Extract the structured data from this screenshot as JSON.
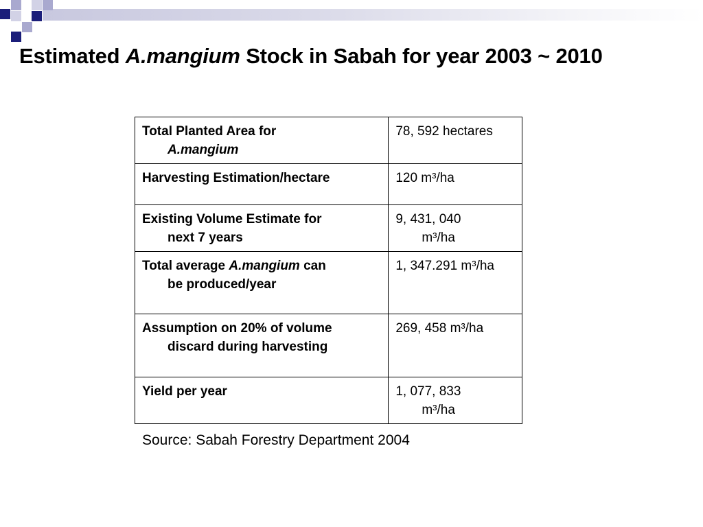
{
  "slide": {
    "title_before": "Estimated ",
    "title_italic": "A.mangium",
    "title_after": " Stock in Sabah for year 2003 ~ 2010"
  },
  "table": {
    "rows": [
      {
        "label_line1": "Total Planted Area for",
        "label_line2_italic": "A.mangium",
        "value_line1": "78, 592 hectares",
        "value_line2": ""
      },
      {
        "label_line1": "Harvesting Estimation/hectare",
        "value_line1": "120 m³/ha",
        "value_line2": ""
      },
      {
        "label_line1": "Existing Volume Estimate for",
        "label_line2": "next 7 years",
        "value_line1": "9, 431, 040",
        "value_line2": "m³/ha"
      },
      {
        "label_line1_pre": "Total average ",
        "label_line1_italic": "A.mangium",
        "label_line1_post": " can",
        "label_line2": "be produced/year",
        "value_line1": "1, 347.291 m³/ha",
        "value_line2": ""
      },
      {
        "label_line1": "Assumption on 20% of volume",
        "label_line2": "discard during harvesting",
        "value_line1": "269, 458 m³/ha",
        "value_line2": ""
      },
      {
        "label_line1": "Yield per year",
        "value_line1": "1, 077, 833",
        "value_line2": "m³/ha"
      }
    ]
  },
  "source": "Source: Sabah Forestry Department 2004",
  "colors": {
    "accent_navy": "#1b1e7a",
    "accent_lavender": "#a9a9cf"
  }
}
